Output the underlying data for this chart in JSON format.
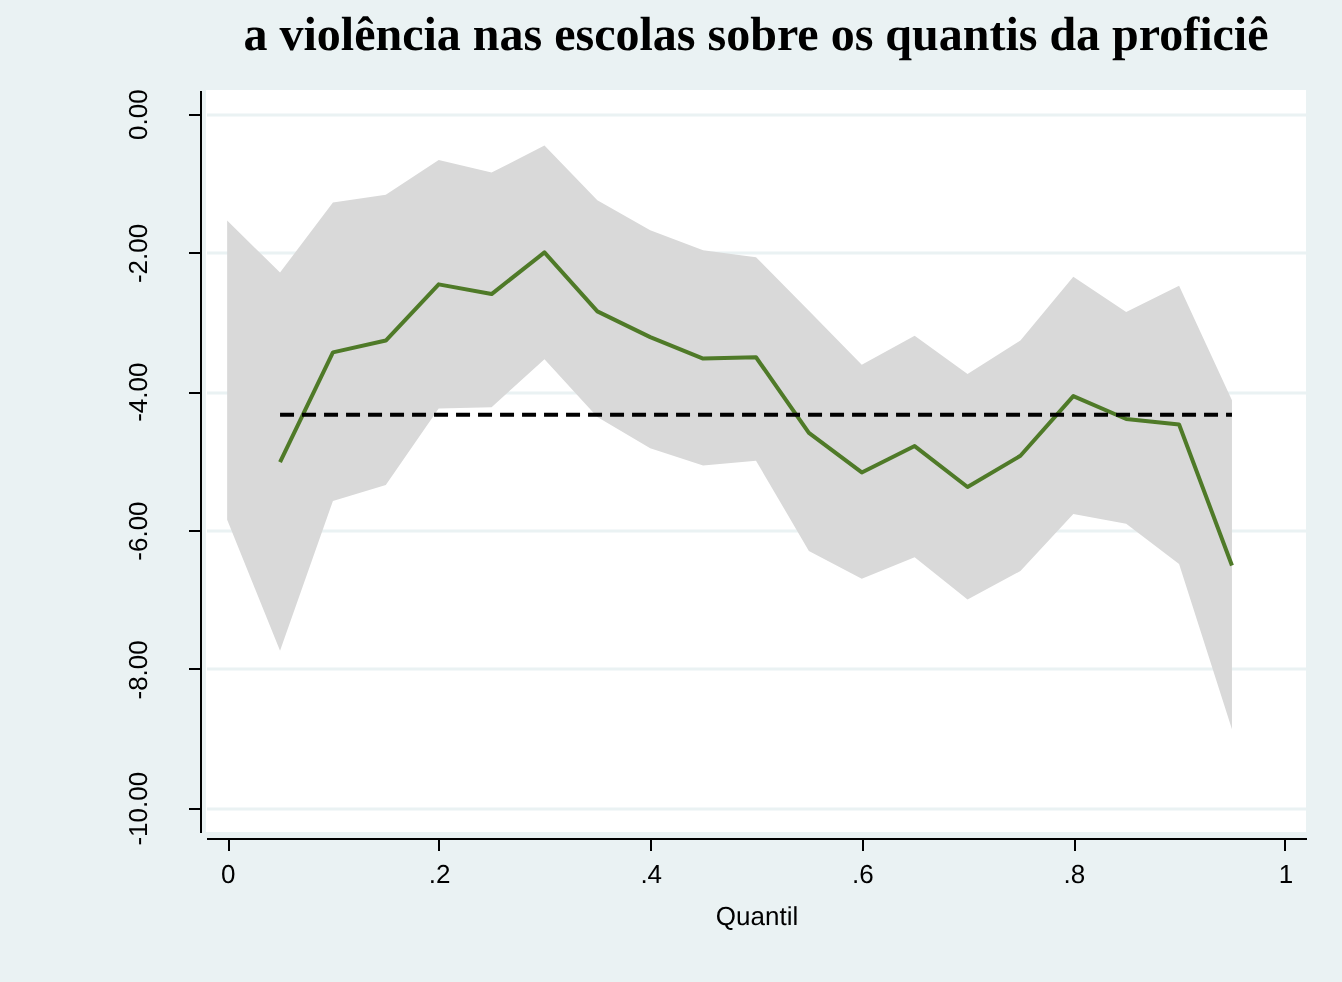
{
  "chart_data": {
    "type": "line",
    "title": "a violência nas escolas sobre os quantis da proficiê",
    "xlabel": "Quantil",
    "xlim": [
      -0.02,
      1.02
    ],
    "xticks": [
      0,
      {
        "value": 0.2,
        "label": ".2"
      },
      {
        "value": 0.4,
        "label": ".4"
      },
      {
        "value": 0.6,
        "label": ".6"
      },
      {
        "value": 0.8,
        "label": ".8"
      },
      1
    ],
    "ylim": [
      -10.35,
      0.34
    ],
    "yticks": [
      {
        "value": -10,
        "label": "-10.00"
      },
      {
        "value": -8,
        "label": "-8.00"
      },
      {
        "value": -6,
        "label": "-6.00"
      },
      {
        "value": -4,
        "label": "-4.00"
      },
      {
        "value": -2,
        "label": "-2.00"
      },
      {
        "value": 0,
        "label": "0.00"
      }
    ],
    "grid": "y",
    "series": [
      {
        "color": "#4f7a28",
        "x": [
          0,
          0.05,
          0.1,
          0.15,
          0.2,
          0.25,
          0.3,
          0.35,
          0.4,
          0.45,
          0.5,
          0.55,
          0.6,
          0.65,
          0.7,
          0.75,
          0.8,
          0.85,
          0.9,
          0.95
        ],
        "values": [
          null,
          -5.02,
          -3.44,
          -3.27,
          -2.46,
          -2.6,
          -2.0,
          -2.85,
          -3.22,
          -3.53,
          -3.51,
          -4.6,
          -5.17,
          -4.79,
          -5.38,
          -4.93,
          -4.07,
          -4.4,
          -4.48,
          -6.51
        ],
        "lower": [
          -5.85,
          -7.74,
          -5.58,
          -5.35,
          -4.25,
          -4.23,
          -3.54,
          -4.37,
          -4.82,
          -5.07,
          -5.0,
          -6.3,
          -6.7,
          -6.39,
          -7.0,
          -6.59,
          -5.77,
          -5.91,
          -6.49,
          -8.87
        ],
        "upper": [
          -1.54,
          -2.29,
          -1.28,
          -1.17,
          -0.67,
          -0.85,
          -0.46,
          -1.25,
          -1.68,
          -1.97,
          -2.07,
          -2.84,
          -3.62,
          -3.2,
          -3.75,
          -3.27,
          -2.35,
          -2.86,
          -2.48,
          -4.13
        ]
      },
      {
        "color": "#000000",
        "line_style": "dashed",
        "x": [
          0.05,
          0.95
        ],
        "values": [
          -4.34,
          -4.34
        ]
      }
    ]
  }
}
